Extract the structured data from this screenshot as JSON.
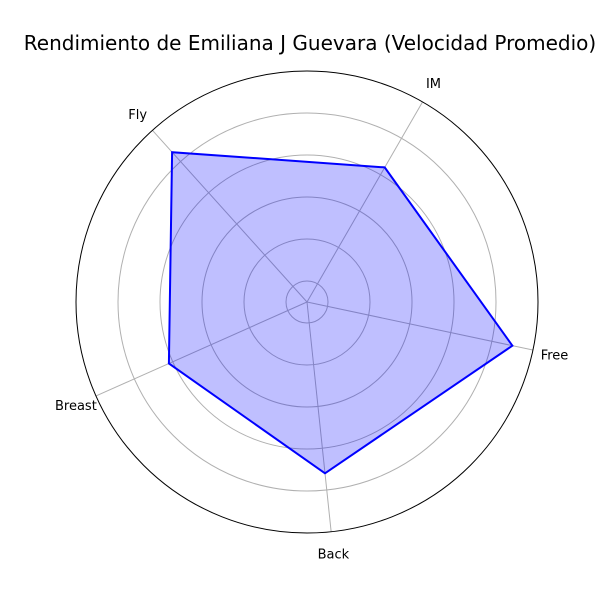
{
  "chart_data": {
    "type": "radar",
    "title": "Rendimiento de Emiliana J Guevara (Velocidad Promedio)",
    "categories": [
      "Free",
      "Back",
      "Breast",
      "Fly",
      "IM"
    ],
    "series": [
      {
        "values": [
          1.0,
          0.82,
          0.72,
          0.96,
          0.74
        ],
        "line_color": "#0000ff",
        "fill_color": "#0000ff",
        "fill_opacity": 0.25
      }
    ],
    "rlim": [
      0,
      1.1
    ],
    "grid": true,
    "radial_ticks_visible": false
  }
}
